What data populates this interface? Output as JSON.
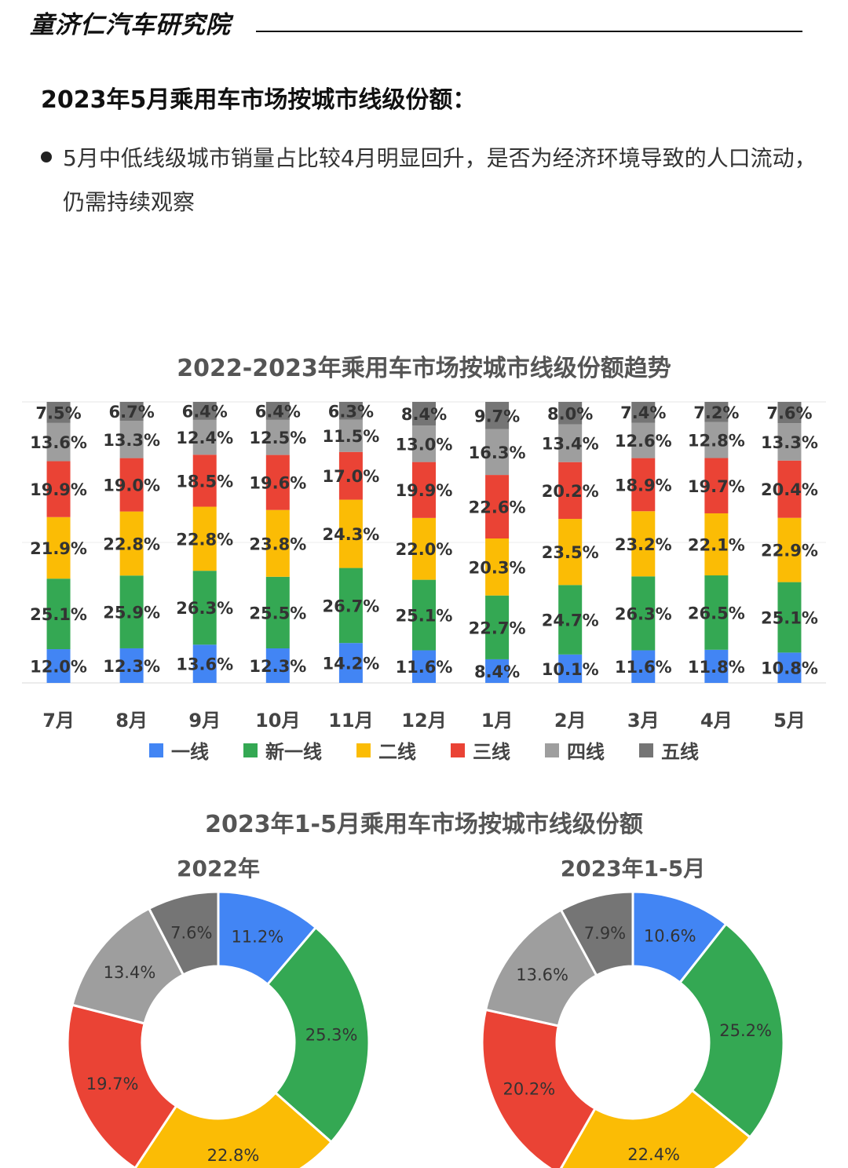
{
  "brand": "童济仁汽车研究院",
  "title": "2023年5月乘用车市场按城市线级份额：",
  "bullet": "5月中低线级城市销量占比较4月明显回升，是否为经济环境导致的人口流动，仍需持续观察",
  "colors": {
    "一线": "#4285F4",
    "新一线": "#34A853",
    "二线": "#FBBC05",
    "三线": "#EA4335",
    "四线": "#9E9E9E",
    "五线": "#757575"
  },
  "chart_data": [
    {
      "type": "bar",
      "stacked": true,
      "title": "2022-2023年乘用车市场按城市线级份额趋势",
      "categories": [
        "7月",
        "8月",
        "9月",
        "10月",
        "11月",
        "12月",
        "1月",
        "2月",
        "3月",
        "4月",
        "5月"
      ],
      "series": [
        {
          "name": "一线",
          "values": [
            12.0,
            12.3,
            13.6,
            12.3,
            14.2,
            11.6,
            8.4,
            10.1,
            11.6,
            11.8,
            10.8
          ]
        },
        {
          "name": "新一线",
          "values": [
            25.1,
            25.9,
            26.3,
            25.5,
            26.7,
            25.1,
            22.7,
            24.7,
            26.3,
            26.5,
            25.1
          ]
        },
        {
          "name": "二线",
          "values": [
            21.9,
            22.8,
            22.8,
            23.8,
            24.3,
            22.0,
            20.3,
            23.5,
            23.2,
            22.1,
            22.9
          ]
        },
        {
          "name": "三线",
          "values": [
            19.9,
            19.0,
            18.5,
            19.6,
            17.0,
            19.9,
            22.6,
            20.2,
            18.9,
            19.7,
            20.4
          ]
        },
        {
          "name": "四线",
          "values": [
            13.6,
            13.3,
            12.4,
            12.5,
            11.5,
            13.0,
            16.3,
            13.4,
            12.6,
            12.8,
            13.3
          ]
        },
        {
          "name": "五线",
          "values": [
            7.5,
            6.7,
            6.4,
            6.4,
            6.3,
            8.4,
            9.7,
            8.0,
            7.4,
            7.2,
            7.6
          ]
        }
      ],
      "label_format": "%.1f%",
      "legend": "bottom"
    },
    {
      "type": "pie",
      "donut": true,
      "group_title": "2023年1-5月乘用车市场按城市线级份额",
      "charts": [
        {
          "title": "2022年",
          "labels": [
            "一线",
            "新一线",
            "二线",
            "三线",
            "四线",
            "五线"
          ],
          "values": [
            11.2,
            25.3,
            22.8,
            19.7,
            13.4,
            7.6
          ]
        },
        {
          "title": "2023年1-5月",
          "labels": [
            "一线",
            "新一线",
            "二线",
            "三线",
            "四线",
            "五线"
          ],
          "values": [
            10.6,
            25.2,
            22.4,
            20.2,
            13.6,
            7.9
          ]
        }
      ]
    }
  ]
}
